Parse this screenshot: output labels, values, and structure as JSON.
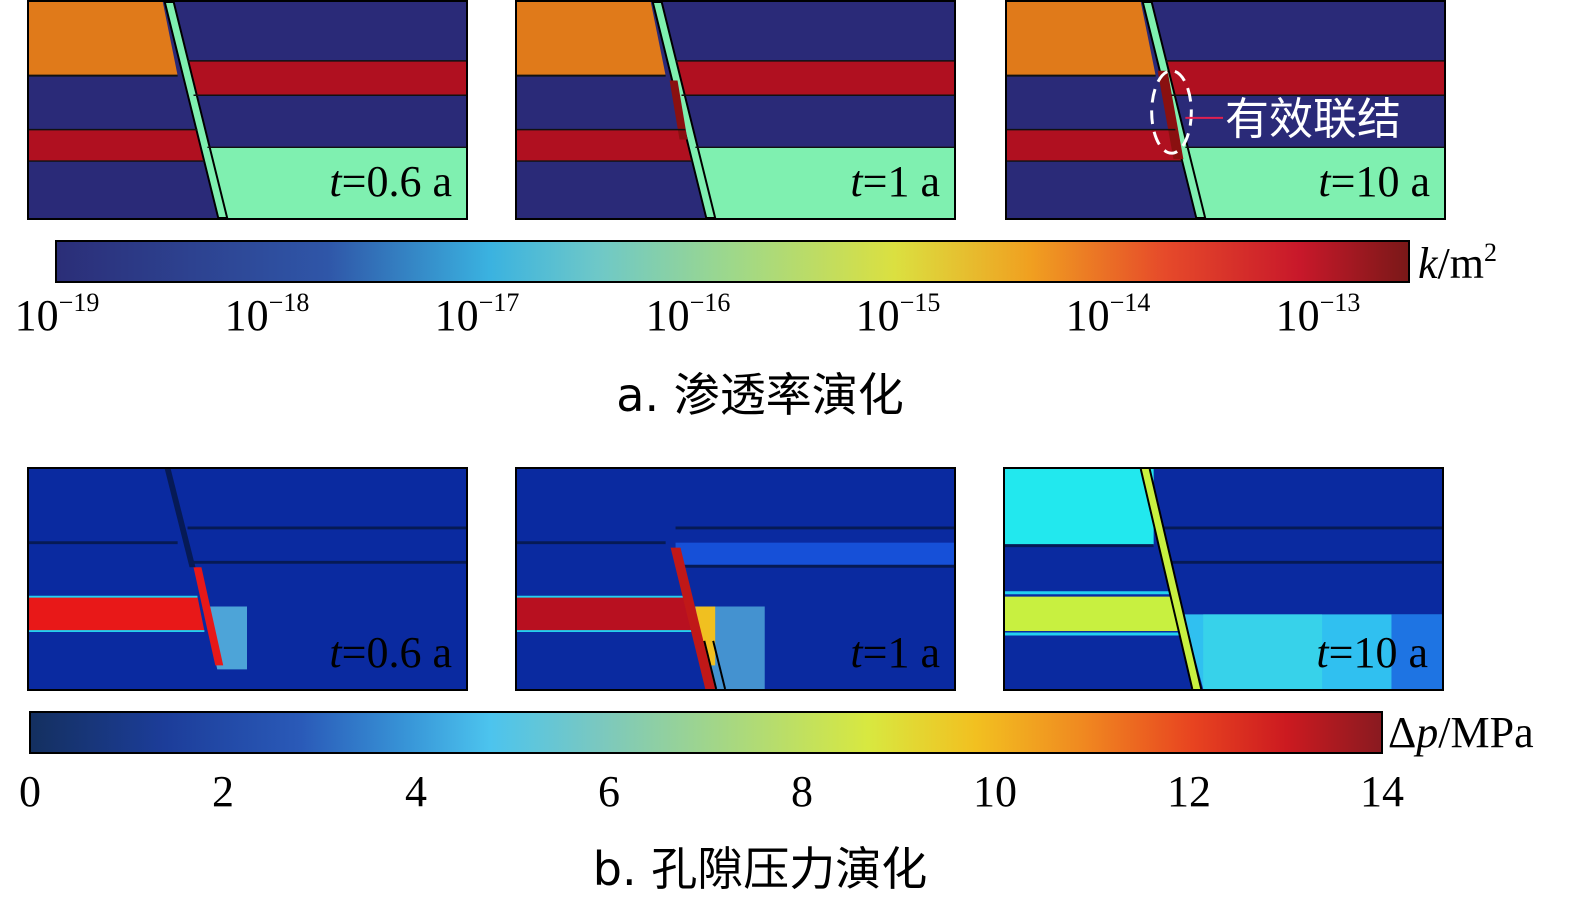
{
  "panel_a": {
    "caption": "a. 渗透率演化",
    "times": [
      "t=0.6 a",
      "t=1 a",
      "t=10 a"
    ],
    "annotation": "有效联结",
    "colorbar": {
      "unit_symbol": "k",
      "unit_rest": "/m",
      "unit_sup": "2",
      "tick_base": "10",
      "tick_exponents": [
        "−19",
        "−18",
        "−17",
        "−16",
        "−15",
        "−14",
        "−13"
      ]
    }
  },
  "panel_b": {
    "caption": "b. 孔隙压力演化",
    "times": [
      "t=0.6 a",
      "t=1 a",
      "t=10 a"
    ],
    "colorbar": {
      "unit_symbol": "Δp",
      "unit_rest": "/MPa",
      "ticks": [
        "0",
        "2",
        "4",
        "6",
        "8",
        "10",
        "12",
        "14"
      ]
    }
  },
  "colors": {
    "dark_blue": "#2a2a78",
    "orange": "#e07a1a",
    "red": "#b01020",
    "aqua_green": "#7ff0b0",
    "pressure_bg": "#0a2aa0",
    "pressure_red": "#e81818",
    "pressure_dark_red": "#b81020",
    "pressure_cyan": "#22e8ee",
    "pressure_yellow_green": "#c8f040"
  }
}
